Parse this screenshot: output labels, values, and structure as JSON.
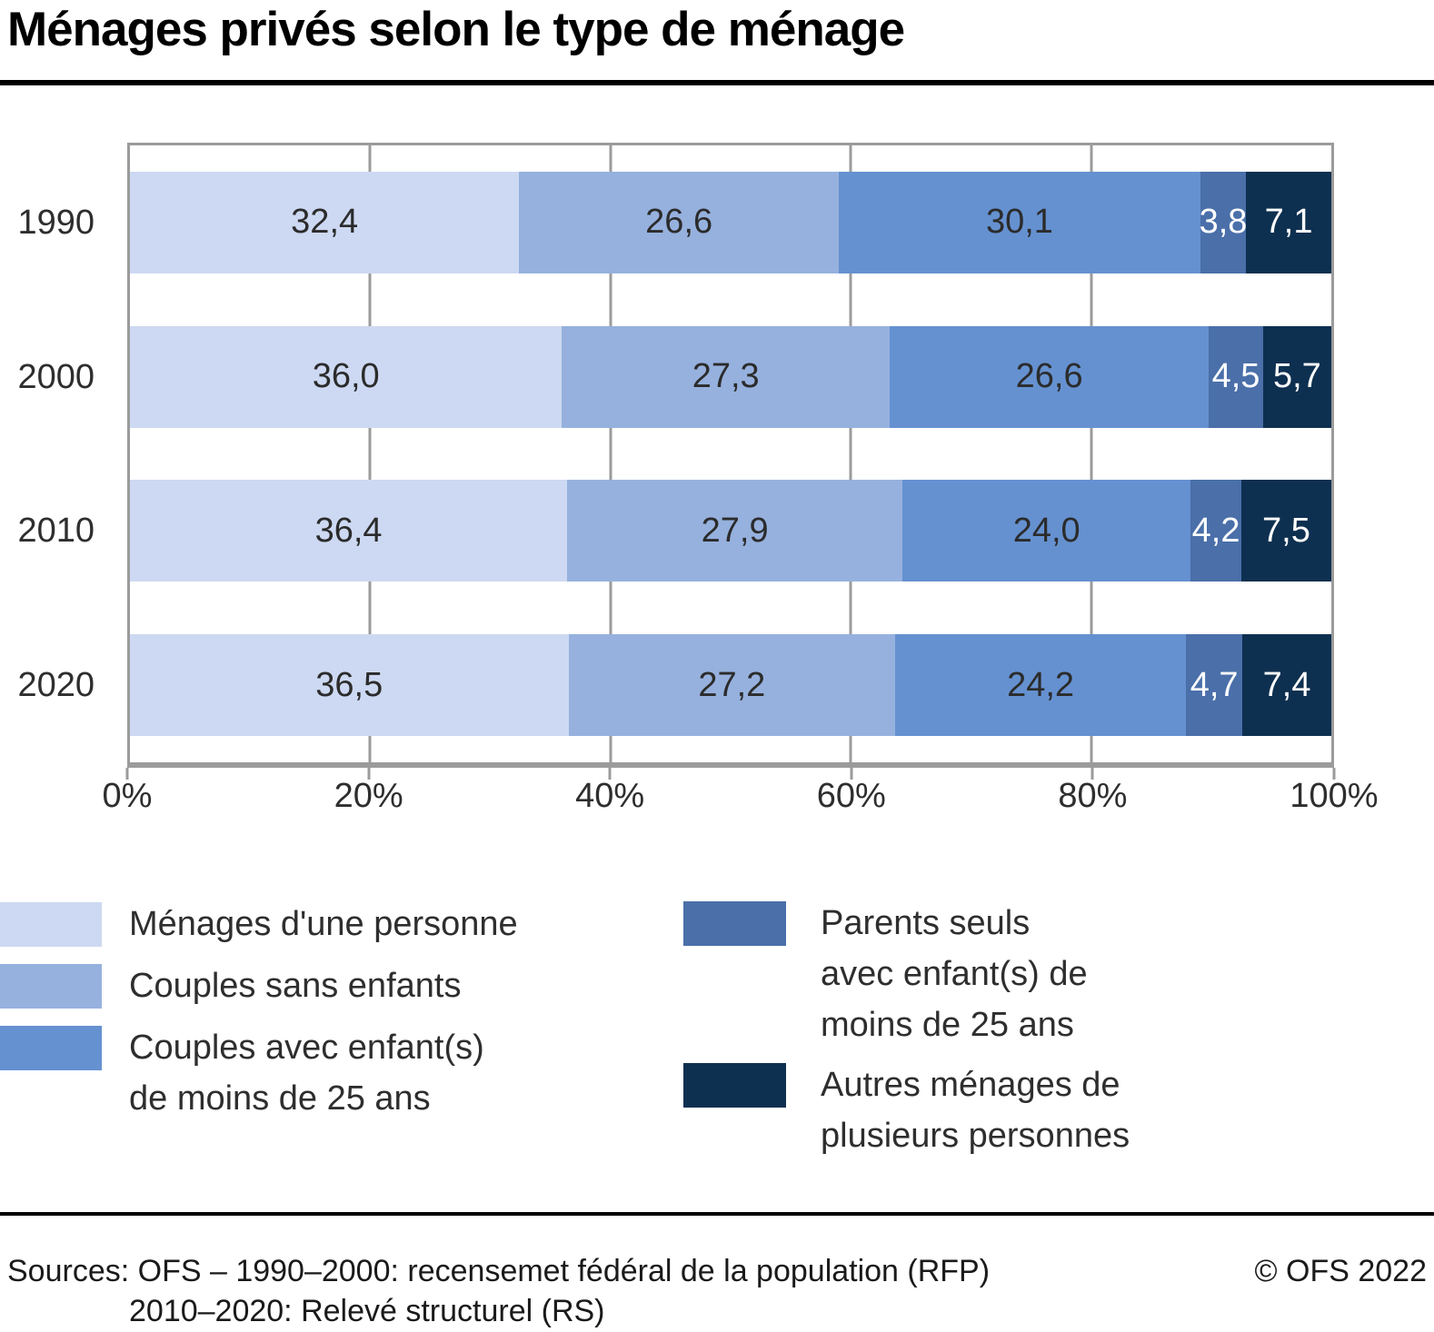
{
  "title": "Ménages privés selon le type de ménage",
  "chart_data": {
    "type": "bar",
    "orientation": "horizontal",
    "stacked": true,
    "unit": "%",
    "categories": [
      "1990",
      "2000",
      "2010",
      "2020"
    ],
    "series": [
      {
        "name": "Ménages d'une personne",
        "color": "#cdd9f2",
        "label_color": "#2b2b2b",
        "values": [
          32.4,
          36.0,
          36.4,
          36.5
        ]
      },
      {
        "name": "Couples sans enfants",
        "color": "#96b1de",
        "label_color": "#2b2b2b",
        "values": [
          26.6,
          27.3,
          27.9,
          27.2
        ]
      },
      {
        "name": "Couples avec enfant(s) de moins de 25 ans",
        "color": "#6591d0",
        "label_color": "#2b2b2b",
        "values": [
          30.1,
          26.6,
          24.0,
          24.2
        ]
      },
      {
        "name": "Parents seuls avec enfant(s) de moins de 25 ans",
        "color": "#4a6fa9",
        "label_color": "#ffffff",
        "values": [
          3.8,
          4.5,
          4.2,
          4.7
        ]
      },
      {
        "name": "Autres ménages de plusieurs personnes",
        "color": "#0e3050",
        "label_color": "#ffffff",
        "values": [
          7.1,
          5.7,
          7.5,
          7.4
        ]
      }
    ],
    "value_labels": [
      [
        "32,4",
        "26,6",
        "30,1",
        "3,8",
        "7,1"
      ],
      [
        "36,0",
        "27,3",
        "26,6",
        "4,5",
        "5,7"
      ],
      [
        "36,4",
        "27,9",
        "24,0",
        "4,2",
        "7,5"
      ],
      [
        "36,5",
        "27,2",
        "24,2",
        "4,7",
        "7,4"
      ]
    ],
    "x_ticks": [
      "0%",
      "20%",
      "40%",
      "60%",
      "80%",
      "100%"
    ],
    "xlim": [
      0,
      100
    ],
    "grid": true,
    "gridline_percents": [
      20,
      40,
      60,
      80
    ],
    "legend_position": "bottom"
  },
  "legend": {
    "left": [
      {
        "color": "#cdd9f2",
        "label_lines": [
          "Ménages d'une personne"
        ]
      },
      {
        "color": "#96b1de",
        "label_lines": [
          "Couples sans enfants"
        ]
      },
      {
        "color": "#6591d0",
        "label_lines": [
          "Couples avec enfant(s)",
          "de moins de 25 ans"
        ]
      }
    ],
    "right": [
      {
        "color": "#4a6fa9",
        "label_lines": [
          "Parents seuls",
          "avec enfant(s) de",
          "moins de 25 ans"
        ]
      },
      {
        "color": "#0e3050",
        "label_lines": [
          "Autres ménages de",
          "plusieurs personnes"
        ]
      }
    ]
  },
  "footer": {
    "sources_line1": "Sources: OFS – 1990–2000: recensemet fédéral de la population (RFP)",
    "sources_line2": "2010–2020: Relevé structurel (RS)",
    "copyright": "© OFS 2022"
  }
}
